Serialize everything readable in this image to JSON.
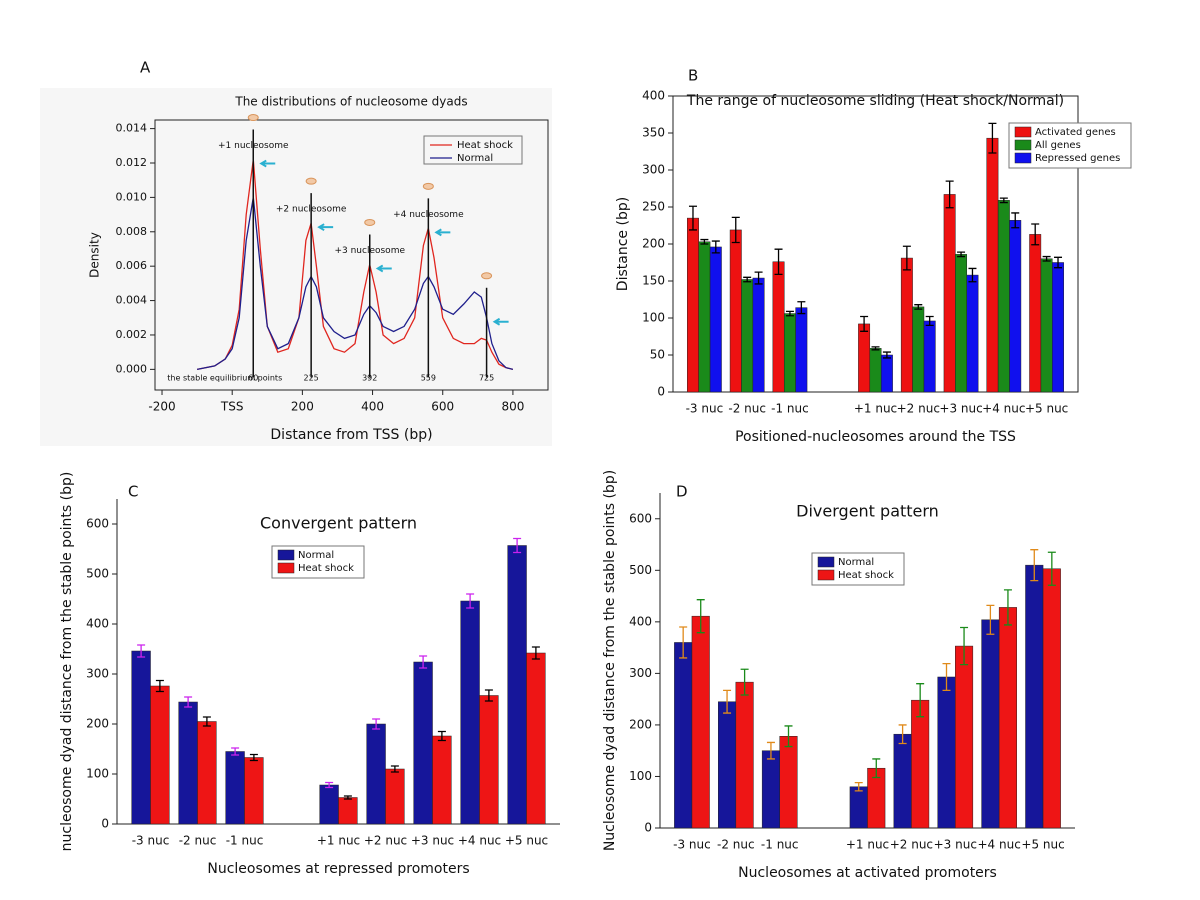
{
  "chart_data": [
    {
      "type": "line",
      "panel": "A",
      "title": "The distributions of nucleosome dyads",
      "x_label": "Distance from TSS (bp)",
      "y_label": "Density",
      "x": [
        -100,
        -50,
        -20,
        0,
        20,
        40,
        60,
        80,
        100,
        130,
        160,
        190,
        210,
        225,
        240,
        260,
        290,
        320,
        350,
        375,
        392,
        410,
        430,
        460,
        490,
        520,
        545,
        559,
        575,
        600,
        630,
        660,
        690,
        710,
        725,
        740,
        760,
        780,
        800
      ],
      "series": [
        {
          "name": "Heat shock",
          "color": "#e0261f",
          "values": [
            0,
            0.0002,
            0.0006,
            0.0014,
            0.0035,
            0.009,
            0.0122,
            0.007,
            0.0025,
            0.001,
            0.0012,
            0.003,
            0.0075,
            0.0085,
            0.006,
            0.0025,
            0.0012,
            0.001,
            0.0015,
            0.0045,
            0.0061,
            0.0045,
            0.002,
            0.0015,
            0.0018,
            0.003,
            0.0072,
            0.0082,
            0.0065,
            0.003,
            0.0018,
            0.0015,
            0.0015,
            0.0018,
            0.0017,
            0.001,
            0.0003,
            0.0001,
            0
          ]
        },
        {
          "name": "Normal",
          "color": "#1f1f8c",
          "values": [
            0,
            0.0002,
            0.0006,
            0.0012,
            0.003,
            0.0075,
            0.01,
            0.006,
            0.0025,
            0.0012,
            0.0015,
            0.003,
            0.0048,
            0.0054,
            0.0048,
            0.003,
            0.0022,
            0.0018,
            0.002,
            0.0032,
            0.0037,
            0.0033,
            0.0025,
            0.0022,
            0.0025,
            0.0035,
            0.005,
            0.0054,
            0.0048,
            0.0035,
            0.0032,
            0.0038,
            0.0045,
            0.0042,
            0.003,
            0.0015,
            0.0005,
            0.0001,
            0
          ]
        }
      ],
      "annotations": [
        "+1 nucleosome",
        "+2 nucleosome",
        "+3 nucleosome",
        "+4 nucleosome"
      ],
      "stable_points_label": "the stable equilibrium points",
      "stable_points": [
        60,
        225,
        392,
        559,
        725
      ],
      "xlim": [
        -220,
        900
      ],
      "xticks": [
        -200,
        {
          "value": 0,
          "label": "TSS"
        },
        200,
        400,
        600,
        800
      ],
      "ylim": [
        -0.0012,
        0.0145
      ],
      "yticks": [
        {
          "value": 0,
          "label": "0.000"
        },
        {
          "value": 0.002,
          "label": "0.002"
        },
        {
          "value": 0.004,
          "label": "0.004"
        },
        {
          "value": 0.006,
          "label": "0.006"
        },
        {
          "value": 0.008,
          "label": "0.008"
        },
        {
          "value": 0.01,
          "label": "0.010"
        },
        {
          "value": 0.012,
          "label": "0.012"
        },
        {
          "value": 0.014,
          "label": "0.014"
        }
      ],
      "legend": "upper right"
    },
    {
      "type": "bar",
      "panel": "B",
      "title": "The range of nucleosome sliding (Heat shock/Normal)",
      "x_label": "Positioned-nucleosomes around the TSS",
      "y_label": "Distance (bp)",
      "categories": [
        "-3 nuc",
        "-2 nuc",
        "-1 nuc",
        null,
        "+1 nuc",
        "+2 nuc",
        "+3 nuc",
        "+4 nuc",
        "+5 nuc"
      ],
      "series": [
        {
          "name": "Activated genes",
          "color": "#ee1111",
          "error_color": "#000000",
          "values": [
            235,
            219,
            176,
            null,
            92,
            181,
            267,
            343,
            213
          ],
          "errors": [
            16,
            17,
            17,
            null,
            10,
            16,
            18,
            20,
            14
          ]
        },
        {
          "name": "All genes",
          "color": "#1a8a1a",
          "error_color": "#000000",
          "values": [
            203,
            152,
            106,
            null,
            59,
            115,
            186,
            259,
            180
          ],
          "errors": [
            3,
            3,
            3,
            null,
            2,
            3,
            3,
            3,
            3
          ]
        },
        {
          "name": "Repressed genes",
          "color": "#1010ee",
          "error_color": "#000000",
          "values": [
            196,
            154,
            114,
            null,
            50,
            96,
            158,
            232,
            175
          ],
          "errors": [
            8,
            8,
            8,
            null,
            4,
            6,
            9,
            10,
            7
          ]
        }
      ],
      "ylim": [
        0,
        400
      ],
      "yticks": [
        0,
        50,
        100,
        150,
        200,
        250,
        300,
        350,
        400
      ],
      "legend": "upper right"
    },
    {
      "type": "bar",
      "panel": "C",
      "title": "Convergent pattern",
      "x_label": "Nucleosomes at repressed promoters",
      "y_label": "nucleosome dyad distance from the stable points (bp)",
      "categories": [
        "-3 nuc",
        "-2 nuc",
        "-1 nuc",
        null,
        "+1 nuc",
        "+2 nuc",
        "+3 nuc",
        "+4 nuc",
        "+5 nuc"
      ],
      "series": [
        {
          "name": "Normal",
          "color": "#16169a",
          "error_color": "#cc22ee",
          "values": [
            346,
            244,
            145,
            null,
            78,
            200,
            324,
            446,
            557
          ],
          "errors": [
            12,
            10,
            7,
            null,
            5,
            10,
            12,
            14,
            14
          ]
        },
        {
          "name": "Heat shock",
          "color": "#ee1515",
          "error_color": "#000000",
          "values": [
            276,
            205,
            133,
            null,
            53,
            110,
            176,
            257,
            342
          ],
          "errors": [
            11,
            9,
            6,
            null,
            3,
            6,
            9,
            11,
            12
          ]
        }
      ],
      "ylim": [
        0,
        650
      ],
      "yticks": [
        0,
        100,
        200,
        300,
        400,
        500,
        600
      ],
      "legend": "upper center"
    },
    {
      "type": "bar",
      "panel": "D",
      "title": "Divergent pattern",
      "x_label": "Nucleosomes at activated promoters",
      "y_label": "Nucleosome dyad distance from the stable points (bp)",
      "categories": [
        "-3 nuc",
        "-2 nuc",
        "-1 nuc",
        null,
        "+1 nuc",
        "+2 nuc",
        "+3 nuc",
        "+4 nuc",
        "+5 nuc"
      ],
      "series": [
        {
          "name": "Normal",
          "color": "#16169a",
          "error_color": "#e08a1a",
          "values": [
            360,
            245,
            150,
            null,
            80,
            182,
            293,
            404,
            510
          ],
          "errors": [
            30,
            22,
            16,
            null,
            8,
            18,
            26,
            28,
            30
          ]
        },
        {
          "name": "Heat shock",
          "color": "#ee1515",
          "error_color": "#1a8a1a",
          "values": [
            411,
            283,
            178,
            null,
            116,
            248,
            353,
            428,
            503
          ],
          "errors": [
            32,
            25,
            20,
            null,
            18,
            32,
            36,
            34,
            32
          ]
        }
      ],
      "ylim": [
        0,
        650
      ],
      "yticks": [
        0,
        100,
        200,
        300,
        400,
        500,
        600
      ],
      "legend": "upper center"
    }
  ]
}
